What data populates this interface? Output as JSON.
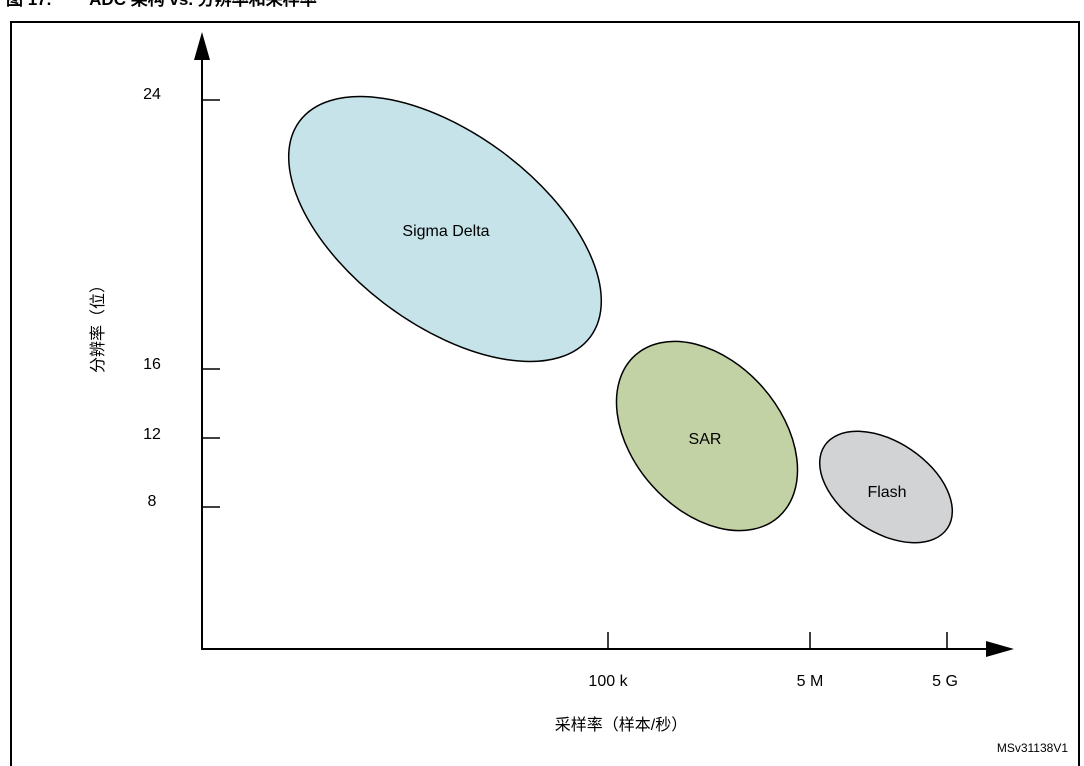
{
  "figure_title": "图 17.        ADC 架构 vs. 分辨率和采样率",
  "y_axis": {
    "label": "分辨率（位）",
    "ticks": [
      "24",
      "16",
      "12",
      "8"
    ]
  },
  "x_axis": {
    "label": "采样率（样本/秒）",
    "ticks": [
      "100 k",
      "5 M",
      "5 G"
    ]
  },
  "regions": [
    {
      "label": "Sigma Delta",
      "color": "#c5e3e9"
    },
    {
      "label": "SAR",
      "color": "#c3d2a4"
    },
    {
      "label": "Flash",
      "color": "#d2d3d5"
    }
  ],
  "figure_id": "MSv31138V1"
}
